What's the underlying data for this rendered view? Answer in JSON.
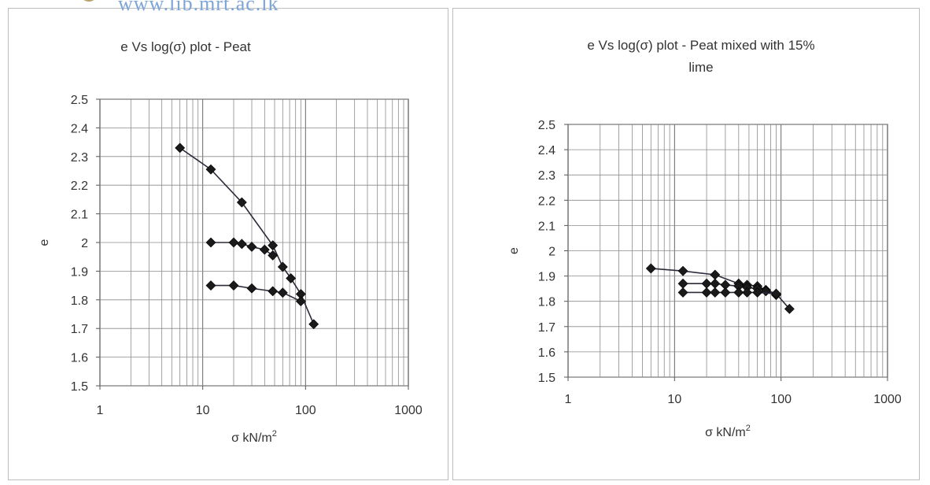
{
  "header": {
    "watermark_text": "www.lib.mrt.ac.lk"
  },
  "chart_data": [
    {
      "type": "scatter",
      "title": "e Vs log(σ) plot  - Peat",
      "xlabel": "σ kN/m²",
      "ylabel": "e",
      "xscale": "log",
      "xlim": [
        1,
        1000
      ],
      "ylim": [
        1.5,
        2.5
      ],
      "x_ticks": [
        "1",
        "10",
        "100",
        "1000"
      ],
      "y_ticks": [
        "1.5",
        "1.6",
        "1.7",
        "1.8",
        "1.9",
        "2",
        "2.1",
        "2.2",
        "2.3",
        "2.4",
        "2.5"
      ],
      "grid": true,
      "marker_color": "#1a1a1a",
      "series": [
        {
          "x": [
            6,
            12,
            24,
            48,
            60,
            72,
            90,
            120
          ],
          "y": [
            2.33,
            2.255,
            2.14,
            1.99,
            1.915,
            1.875,
            1.82,
            1.715
          ]
        },
        {
          "x": [
            12,
            20,
            24,
            30,
            40,
            48
          ],
          "y": [
            2.0,
            2.0,
            1.995,
            1.985,
            1.975,
            1.955
          ]
        },
        {
          "x": [
            12,
            20,
            30,
            48,
            60,
            90
          ],
          "y": [
            1.85,
            1.85,
            1.84,
            1.83,
            1.825,
            1.795
          ]
        }
      ]
    },
    {
      "type": "scatter",
      "title": "e Vs log(σ) plot - Peat mixed with 15% lime",
      "xlabel": "σ  kN/m²",
      "ylabel": "e",
      "xscale": "log",
      "xlim": [
        1,
        1000
      ],
      "ylim": [
        1.5,
        2.5
      ],
      "x_ticks": [
        "1",
        "10",
        "100",
        "1000"
      ],
      "y_ticks": [
        "1.5",
        "1.6",
        "1.7",
        "1.8",
        "1.9",
        "2",
        "2.1",
        "2.2",
        "2.3",
        "2.4",
        "2.5"
      ],
      "grid": true,
      "marker_color": "#1a1a1a",
      "series": [
        {
          "x": [
            6,
            12,
            24,
            40,
            48,
            60,
            72,
            90,
            120
          ],
          "y": [
            1.93,
            1.92,
            1.905,
            1.87,
            1.865,
            1.86,
            1.845,
            1.83,
            1.77
          ]
        },
        {
          "x": [
            12,
            20,
            24,
            30,
            40,
            48,
            60,
            72,
            90
          ],
          "y": [
            1.87,
            1.87,
            1.87,
            1.865,
            1.86,
            1.855,
            1.85,
            1.84,
            1.825
          ]
        },
        {
          "x": [
            12,
            20,
            24,
            30,
            40,
            48,
            60,
            90
          ],
          "y": [
            1.835,
            1.835,
            1.835,
            1.835,
            1.835,
            1.835,
            1.835,
            1.83
          ]
        }
      ]
    }
  ]
}
